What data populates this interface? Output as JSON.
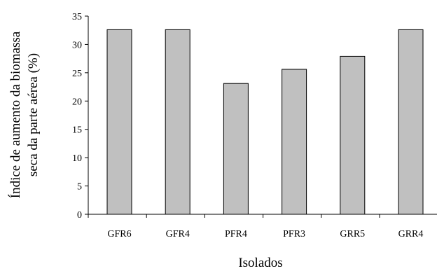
{
  "chart_data": {
    "type": "bar",
    "categories": [
      "GFR6",
      "GFR4",
      "PFR4",
      "PFR3",
      "GRR5",
      "GRR4"
    ],
    "values": [
      32.6,
      32.6,
      23.1,
      25.6,
      27.9,
      32.6
    ],
    "xlabel": "Isolados",
    "ylabel_line1": "Índice de aumento da biomassa",
    "ylabel_line2": "seca da parte aérea (%)",
    "ylim": [
      0,
      35
    ],
    "yticks": [
      0,
      5,
      10,
      15,
      20,
      25,
      30,
      35
    ],
    "bar_color": "#c0c0c0",
    "grid": false,
    "legend": "none"
  }
}
